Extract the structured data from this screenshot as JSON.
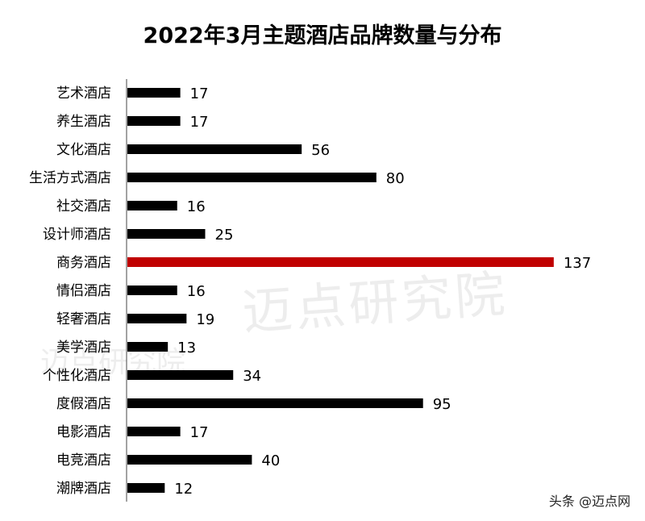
{
  "chart_data": {
    "type": "bar",
    "orientation": "horizontal",
    "title": "2022年3月主题酒店品牌数量与分布",
    "categories": [
      "艺术酒店",
      "养生酒店",
      "文化酒店",
      "生活方式酒店",
      "社交酒店",
      "设计师酒店",
      "商务酒店",
      "情侣酒店",
      "轻奢酒店",
      "美学酒店",
      "个性化酒店",
      "度假酒店",
      "电影酒店",
      "电竞酒店",
      "潮牌酒店"
    ],
    "values": [
      17,
      17,
      56,
      80,
      16,
      25,
      137,
      16,
      19,
      13,
      34,
      95,
      17,
      40,
      12
    ],
    "highlight": "商务酒店",
    "colors": {
      "default": "#000000",
      "highlight": "#c00000"
    },
    "data_labels": true,
    "grid": false
  },
  "watermark": "迈点研究院",
  "footer": "头条 @迈点网"
}
